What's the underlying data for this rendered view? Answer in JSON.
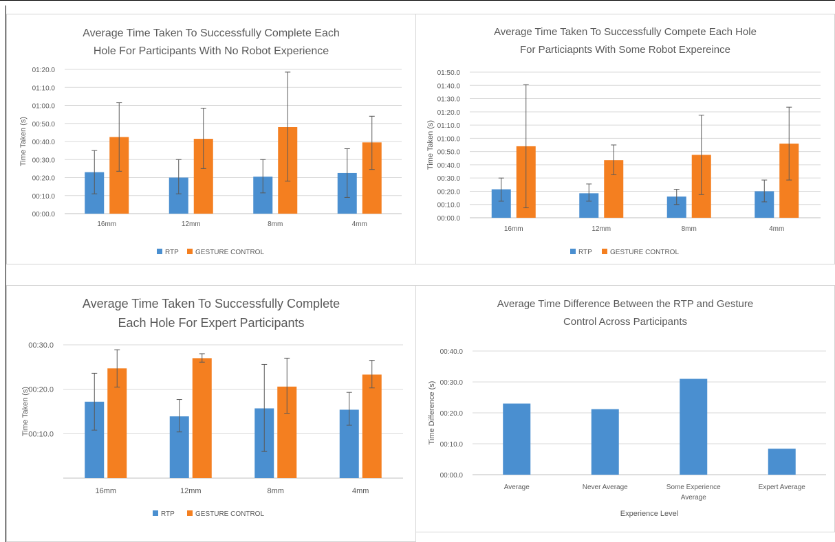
{
  "colors": {
    "rtp": "#4a8fd0",
    "gesture": "#f47f20",
    "grid": "#d9d9d9",
    "axis": "#bfbfbf",
    "error": "#595959"
  },
  "chart_data": [
    {
      "type": "bar",
      "title_lines": [
        "Average Time Taken To Successfully Complete Each",
        "Hole For Participants With No Robot Experience"
      ],
      "xlabel": "",
      "ylabel": "Time Taken (s)",
      "categories": [
        "16mm",
        "12mm",
        "8mm",
        "4mm"
      ],
      "yticks": [
        "00:00.0",
        "00:10.0",
        "00:20.0",
        "00:30.0",
        "00:40.0",
        "00:50.0",
        "01:00.0",
        "01:10.0",
        "01:20.0"
      ],
      "ylim": [
        0,
        80
      ],
      "series": [
        {
          "name": "RTP",
          "values": [
            23,
            20,
            20.5,
            22.5
          ],
          "error_low": [
            11,
            11,
            11.5,
            9
          ],
          "error_high": [
            35,
            30,
            30,
            36
          ]
        },
        {
          "name": "GESTURE CONTROL",
          "values": [
            42.5,
            41.5,
            48,
            39.5
          ],
          "error_low": [
            23.5,
            25,
            18,
            24.5
          ],
          "error_high": [
            61.5,
            58.5,
            78.5,
            54
          ]
        }
      ],
      "legend": "bottom"
    },
    {
      "type": "bar",
      "title_lines": [
        "Average Time Taken To Successfully Compete Each Hole",
        "For Particiapnts With Some Robot Expereince"
      ],
      "xlabel": "",
      "ylabel": "Time Taken (s)",
      "categories": [
        "16mm",
        "12mm",
        "8mm",
        "4mm"
      ],
      "yticks": [
        "00:00.0",
        "00:10.0",
        "00:20.0",
        "00:30.0",
        "00:40.0",
        "00:50.0",
        "01:00.0",
        "01:10.0",
        "01:20.0",
        "01:30.0",
        "01:40.0",
        "01:50.0"
      ],
      "ylim": [
        0,
        110
      ],
      "series": [
        {
          "name": "RTP",
          "values": [
            21.5,
            18.5,
            16,
            20
          ],
          "error_low": [
            12.5,
            12.5,
            10,
            12
          ],
          "error_high": [
            30,
            25.5,
            21.5,
            28.5
          ]
        },
        {
          "name": "GESTURE CONTROL",
          "values": [
            54,
            43.5,
            47.5,
            56
          ],
          "error_low": [
            7.5,
            32.5,
            17.5,
            28.5
          ],
          "error_high": [
            100.5,
            55,
            77.5,
            83.5
          ]
        }
      ],
      "legend": "bottom"
    },
    {
      "type": "bar",
      "title_lines": [
        "Average Time Taken To Successfully Complete",
        "Each Hole For Expert Participants"
      ],
      "xlabel": "",
      "ylabel": "Time Taken (s)",
      "categories": [
        "16mm",
        "12mm",
        "8mm",
        "4mm"
      ],
      "yticks": [
        "",
        "00:10.0",
        "00:20.0",
        "00:30.0"
      ],
      "ylim": [
        0,
        30
      ],
      "series": [
        {
          "name": "RTP",
          "values": [
            17.2,
            13.9,
            15.7,
            15.4
          ],
          "error_low": [
            10.8,
            10.4,
            6,
            11.9
          ],
          "error_high": [
            23.6,
            17.7,
            25.6,
            19.3
          ]
        },
        {
          "name": "GESTURE CONTROL",
          "values": [
            24.7,
            27,
            20.6,
            23.3
          ],
          "error_low": [
            20.5,
            26.1,
            14.6,
            20.3
          ],
          "error_high": [
            28.9,
            28,
            27,
            26.5
          ]
        }
      ],
      "legend": "bottom"
    },
    {
      "type": "bar",
      "title_lines": [
        "Average Time Difference Between the RTP and Gesture",
        "Control Across Participants"
      ],
      "xlabel": "Experience Level",
      "ylabel": "Time Difference (s)",
      "category_lines": [
        [
          "Average"
        ],
        [
          "Never Average"
        ],
        [
          "Some Experience",
          "Average"
        ],
        [
          "Expert Average"
        ]
      ],
      "yticks": [
        "00:00.0",
        "00:10.0",
        "00:20.0",
        "00:30.0",
        "00:40.0"
      ],
      "ylim": [
        0,
        40
      ],
      "series": [
        {
          "values": [
            23,
            21.2,
            31,
            8.4
          ]
        }
      ]
    }
  ]
}
